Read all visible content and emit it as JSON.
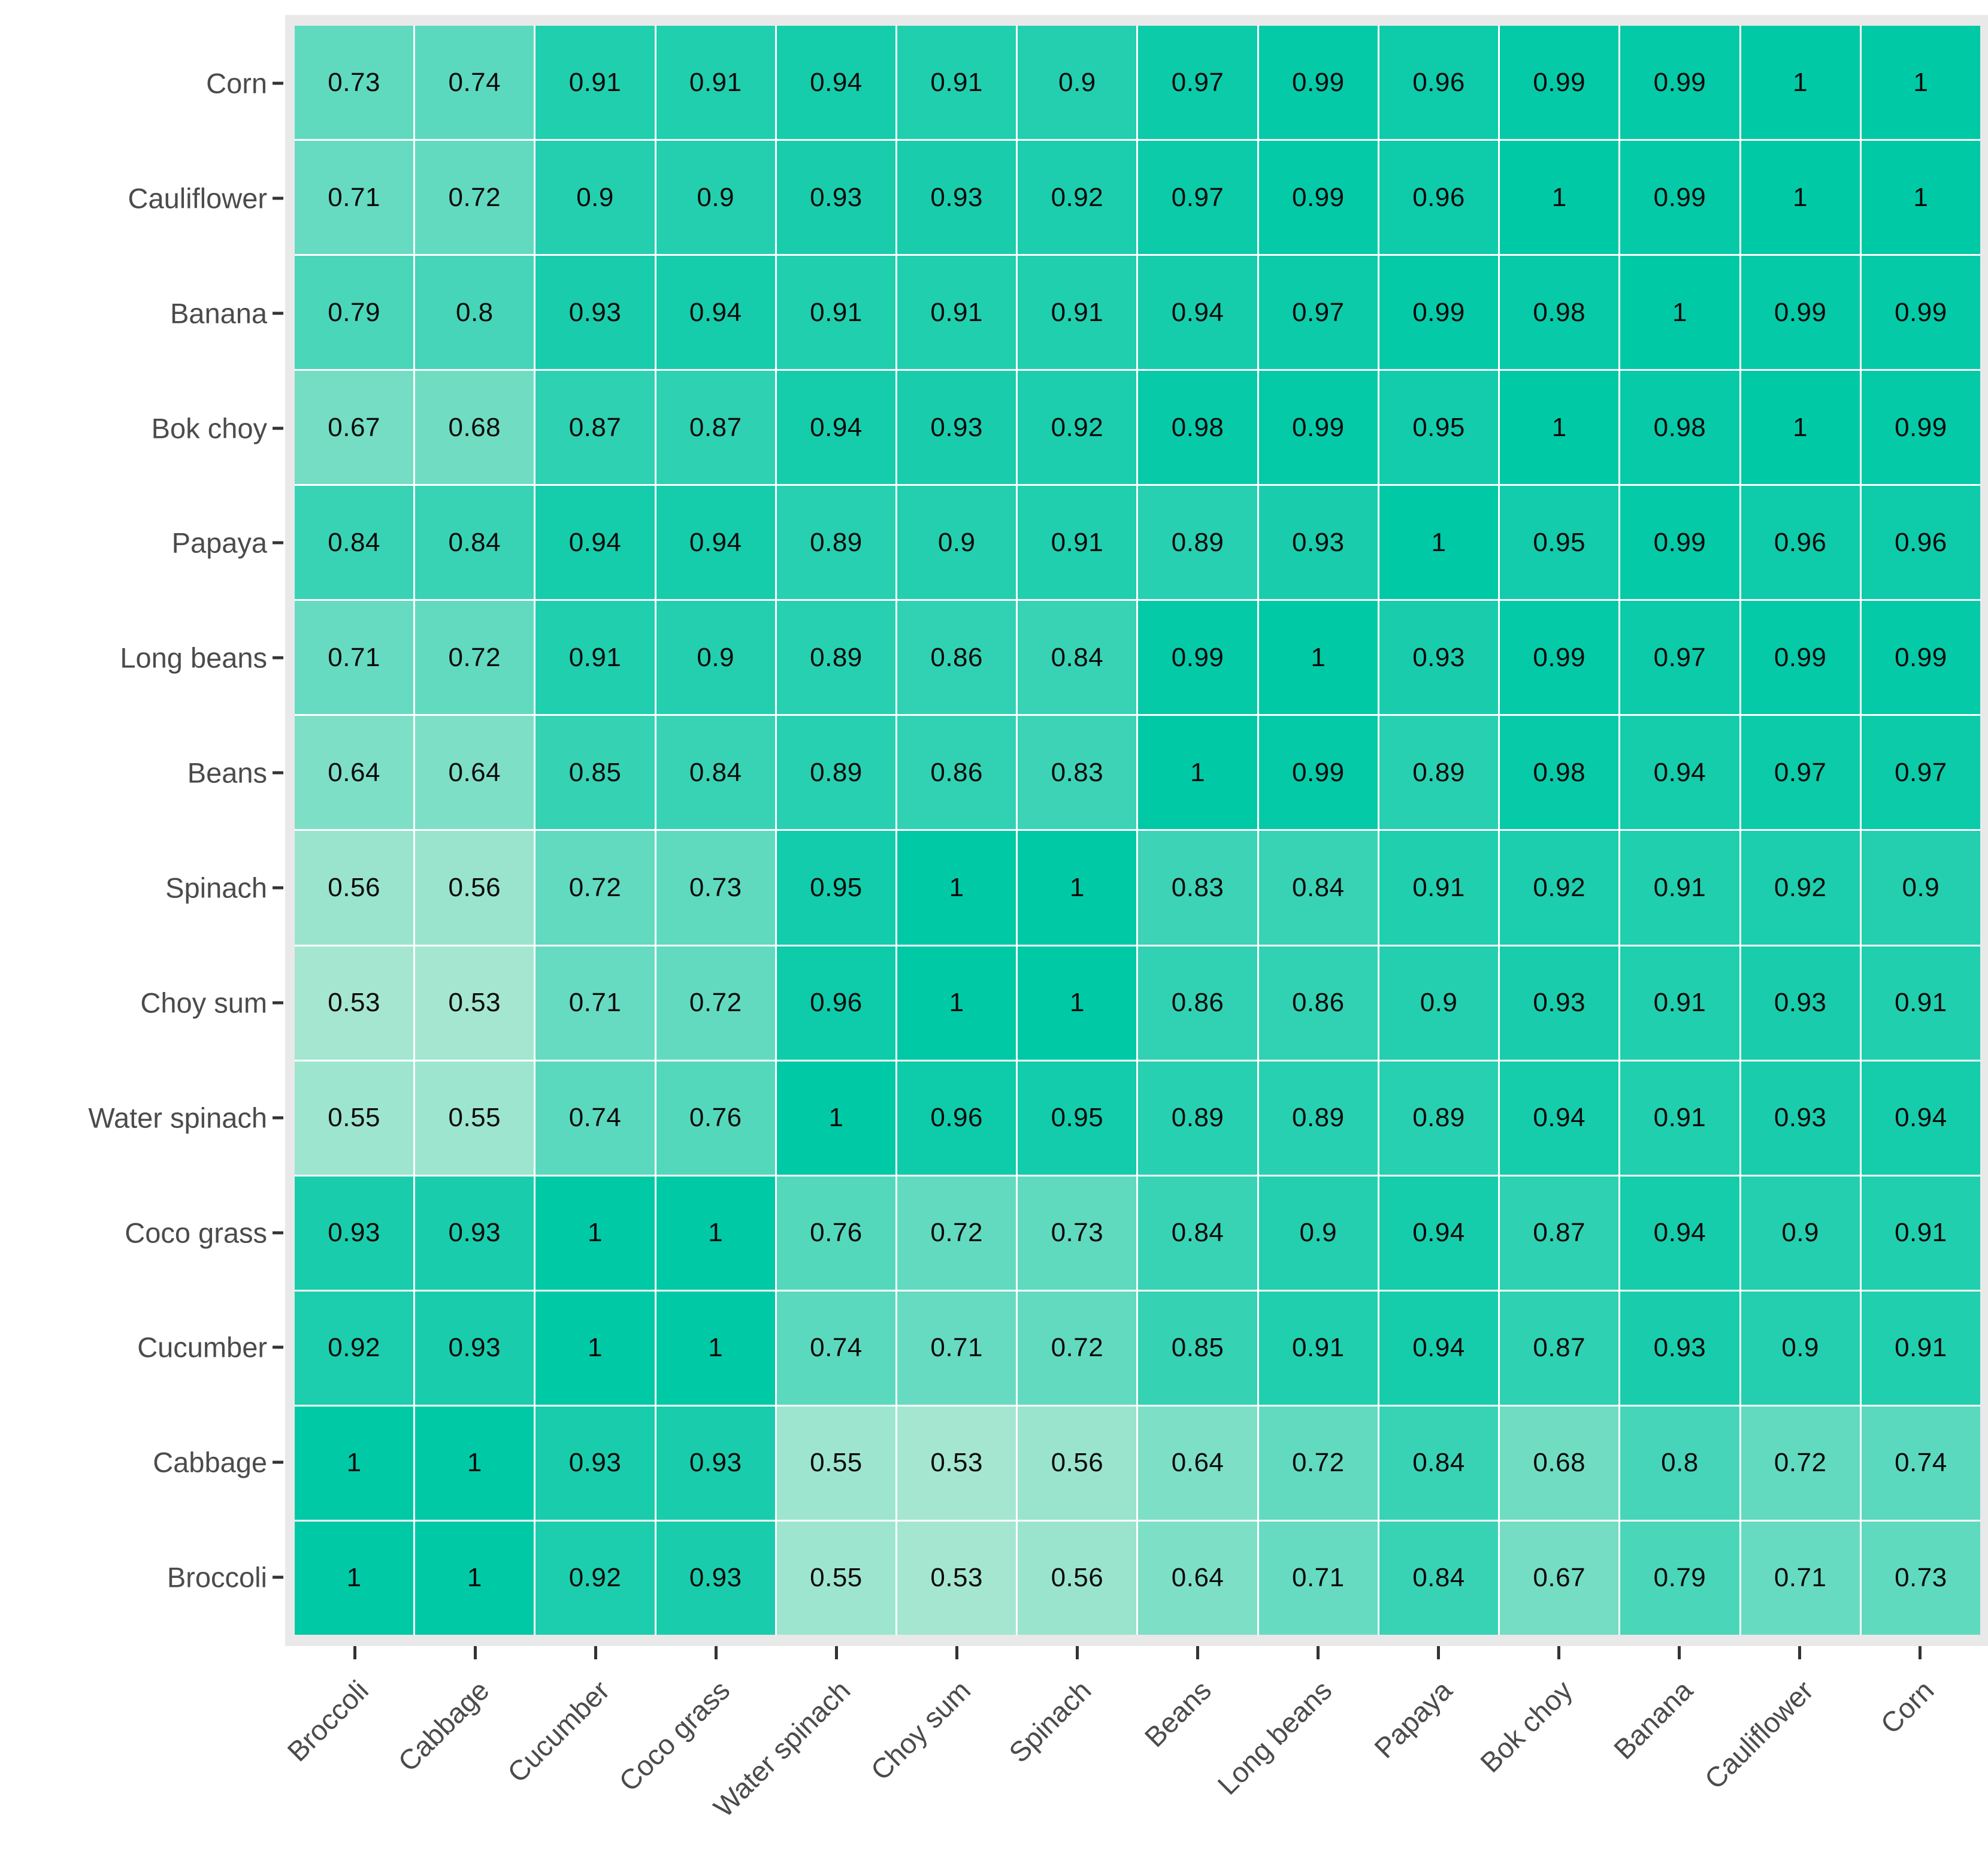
{
  "chart_data": {
    "type": "heatmap",
    "title": "",
    "xlabel": "",
    "ylabel": "",
    "legend_position": "none",
    "grid": true,
    "x_categories": [
      "Broccoli",
      "Cabbage",
      "Cucumber",
      "Coco grass",
      "Water spinach",
      "Choy sum",
      "Spinach",
      "Beans",
      "Long beans",
      "Papaya",
      "Bok choy",
      "Banana",
      "Cauliflower",
      "Corn"
    ],
    "y_categories_top_to_bottom": [
      "Corn",
      "Cauliflower",
      "Banana",
      "Bok choy",
      "Papaya",
      "Long beans",
      "Beans",
      "Spinach",
      "Choy sum",
      "Water spinach",
      "Coco grass",
      "Cucumber",
      "Cabbage",
      "Broccoli"
    ],
    "values": [
      [
        0.73,
        0.74,
        0.91,
        0.91,
        0.94,
        0.91,
        0.9,
        0.97,
        0.99,
        0.96,
        0.99,
        0.99,
        1,
        1
      ],
      [
        0.71,
        0.72,
        0.9,
        0.9,
        0.93,
        0.93,
        0.92,
        0.97,
        0.99,
        0.96,
        1,
        0.99,
        1,
        1
      ],
      [
        0.79,
        0.8,
        0.93,
        0.94,
        0.91,
        0.91,
        0.91,
        0.94,
        0.97,
        0.99,
        0.98,
        1,
        0.99,
        0.99
      ],
      [
        0.67,
        0.68,
        0.87,
        0.87,
        0.94,
        0.93,
        0.92,
        0.98,
        0.99,
        0.95,
        1,
        0.98,
        1,
        0.99
      ],
      [
        0.84,
        0.84,
        0.94,
        0.94,
        0.89,
        0.9,
        0.91,
        0.89,
        0.93,
        1,
        0.95,
        0.99,
        0.96,
        0.96
      ],
      [
        0.71,
        0.72,
        0.91,
        0.9,
        0.89,
        0.86,
        0.84,
        0.99,
        1,
        0.93,
        0.99,
        0.97,
        0.99,
        0.99
      ],
      [
        0.64,
        0.64,
        0.85,
        0.84,
        0.89,
        0.86,
        0.83,
        1,
        0.99,
        0.89,
        0.98,
        0.94,
        0.97,
        0.97
      ],
      [
        0.56,
        0.56,
        0.72,
        0.73,
        0.95,
        1,
        1,
        0.83,
        0.84,
        0.91,
        0.92,
        0.91,
        0.92,
        0.9
      ],
      [
        0.53,
        0.53,
        0.71,
        0.72,
        0.96,
        1,
        1,
        0.86,
        0.86,
        0.9,
        0.93,
        0.91,
        0.93,
        0.91
      ],
      [
        0.55,
        0.55,
        0.74,
        0.76,
        1,
        0.96,
        0.95,
        0.89,
        0.89,
        0.89,
        0.94,
        0.91,
        0.93,
        0.94
      ],
      [
        0.93,
        0.93,
        1,
        1,
        0.76,
        0.72,
        0.73,
        0.84,
        0.9,
        0.94,
        0.87,
        0.94,
        0.9,
        0.91
      ],
      [
        0.92,
        0.93,
        1,
        1,
        0.74,
        0.71,
        0.72,
        0.85,
        0.91,
        0.94,
        0.87,
        0.93,
        0.9,
        0.91
      ],
      [
        1,
        1,
        0.93,
        0.93,
        0.55,
        0.53,
        0.56,
        0.64,
        0.72,
        0.84,
        0.68,
        0.8,
        0.72,
        0.74
      ],
      [
        1,
        1,
        0.92,
        0.93,
        0.55,
        0.53,
        0.56,
        0.64,
        0.71,
        0.84,
        0.67,
        0.79,
        0.71,
        0.73
      ]
    ],
    "value_range": [
      0.53,
      1
    ],
    "colors": {
      "low": "#A5E6D1",
      "high": "#00C9A6",
      "panel_bg": "#E9E9E9",
      "grid_gap": "#FFFFFF",
      "cell_text": "#0B0B0B",
      "axis_text": "#4B4B4B",
      "tick": "#333333"
    }
  }
}
